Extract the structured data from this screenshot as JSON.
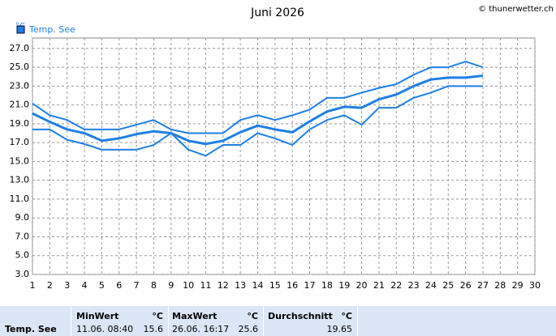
{
  "chart_data": {
    "type": "line",
    "title": "Juni 2026",
    "credit": "© thunerwetter.ch",
    "y_unit": "°C",
    "x": [
      1,
      2,
      3,
      4,
      5,
      6,
      7,
      8,
      9,
      10,
      11,
      12,
      13,
      14,
      15,
      16,
      17,
      18,
      19,
      20,
      21,
      22,
      23,
      24,
      25,
      26,
      27
    ],
    "series": [
      {
        "name": "Temp. See",
        "color": "#1e7fe6",
        "values": [
          20.1,
          19.2,
          18.4,
          18.0,
          17.2,
          17.45,
          17.9,
          18.2,
          18.0,
          17.2,
          16.85,
          17.2,
          18.1,
          18.8,
          18.4,
          18.1,
          19.25,
          20.3,
          20.8,
          20.7,
          21.6,
          22.1,
          23.0,
          23.7,
          23.9,
          23.9,
          24.1
        ]
      },
      {
        "color": "#1e7fe6",
        "values": [
          21.15,
          19.9,
          19.4,
          18.4,
          18.4,
          18.4,
          18.9,
          19.4,
          18.4,
          18.0,
          18.0,
          18.0,
          19.4,
          19.9,
          19.4,
          19.9,
          20.5,
          21.75,
          21.75,
          22.3,
          22.8,
          23.2,
          24.2,
          25.0,
          25.0,
          25.6,
          25.0
        ]
      },
      {
        "color": "#1e7fe6",
        "values": [
          18.4,
          18.4,
          17.3,
          16.85,
          16.25,
          16.25,
          16.25,
          16.75,
          18.0,
          16.25,
          15.6,
          16.75,
          16.75,
          18.0,
          17.45,
          16.75,
          18.4,
          19.4,
          19.9,
          18.9,
          20.7,
          20.7,
          21.75,
          22.3,
          23.0,
          23.0,
          23.0
        ]
      }
    ],
    "xlim": [
      1,
      30
    ],
    "xticks": [
      1,
      2,
      3,
      4,
      5,
      6,
      7,
      8,
      9,
      10,
      11,
      12,
      13,
      14,
      15,
      16,
      17,
      18,
      19,
      20,
      21,
      22,
      23,
      24,
      25,
      26,
      27,
      28,
      29,
      30
    ],
    "ylim": [
      3,
      28.1
    ],
    "yticks": [
      {
        "value": 3,
        "label": "3.0"
      },
      {
        "value": 5,
        "label": "5.0"
      },
      {
        "value": 7,
        "label": "7.0"
      },
      {
        "value": 9,
        "label": "9.0"
      },
      {
        "value": 11,
        "label": "11.0"
      },
      {
        "value": 13,
        "label": "13.0"
      },
      {
        "value": 15,
        "label": "15.0"
      },
      {
        "value": 17,
        "label": "17.0"
      },
      {
        "value": 19,
        "label": "19.0"
      },
      {
        "value": 21,
        "label": "21.0"
      },
      {
        "value": 23,
        "label": "23.0"
      },
      {
        "value": 25,
        "label": "25.0"
      },
      {
        "value": 27,
        "label": "27.0"
      }
    ],
    "grid": true
  },
  "table": {
    "header": [
      "MinWert",
      "°C",
      "MaxWert",
      "°C",
      "Durchschnitt",
      "°C"
    ],
    "row": [
      "Temp. See",
      "11.06. 08:40",
      "15.6",
      "26.06. 16:17",
      "25.6",
      "19.65"
    ]
  }
}
